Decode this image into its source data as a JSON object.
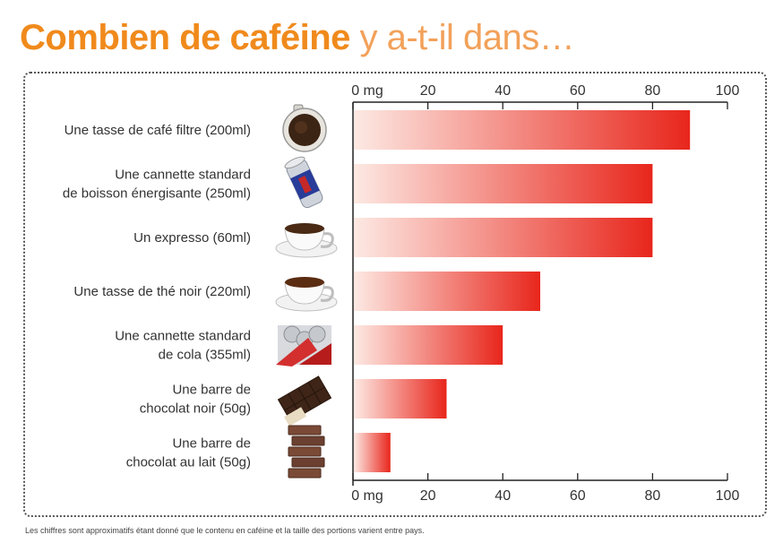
{
  "title": {
    "bold": "Combien de caféine",
    "rest": "y a-t-il dans…"
  },
  "footnote": "Les chiffres sont approximatifs étant donné que le contenu en caféine et la taille des portions varient entre pays.",
  "colors": {
    "title_bold": "#f08a1c",
    "title_rest": "#f2a15a",
    "bar_start": "#fde9e3",
    "bar_end": "#e8261c"
  },
  "chart_data": {
    "type": "bar",
    "orientation": "horizontal",
    "categories": [
      [
        "Une tasse de café filtre (200ml)"
      ],
      [
        "Une cannette standard",
        "de boisson énergisante (250ml)"
      ],
      [
        "Un expresso (60ml)"
      ],
      [
        "Une tasse de thé noir (220ml)"
      ],
      [
        "Une cannette standard",
        "de cola (355ml)"
      ],
      [
        "Une barre de",
        "chocolat noir (50g)"
      ],
      [
        "Une barre de",
        "chocolat au lait  (50g)"
      ]
    ],
    "icons": [
      "filter-coffee-icon",
      "energy-drink-can-icon",
      "espresso-cup-icon",
      "black-tea-cup-icon",
      "cola-cans-icon",
      "dark-chocolate-icon",
      "milk-chocolate-icon"
    ],
    "values": [
      90,
      80,
      80,
      50,
      40,
      25,
      10
    ],
    "tick_labels": [
      "0 mg",
      "20",
      "40",
      "60",
      "80",
      "100"
    ],
    "ticks": [
      0,
      20,
      40,
      60,
      80,
      100
    ],
    "xlim": [
      0,
      100
    ],
    "axis_position": "top-and-bottom",
    "grid": false
  }
}
